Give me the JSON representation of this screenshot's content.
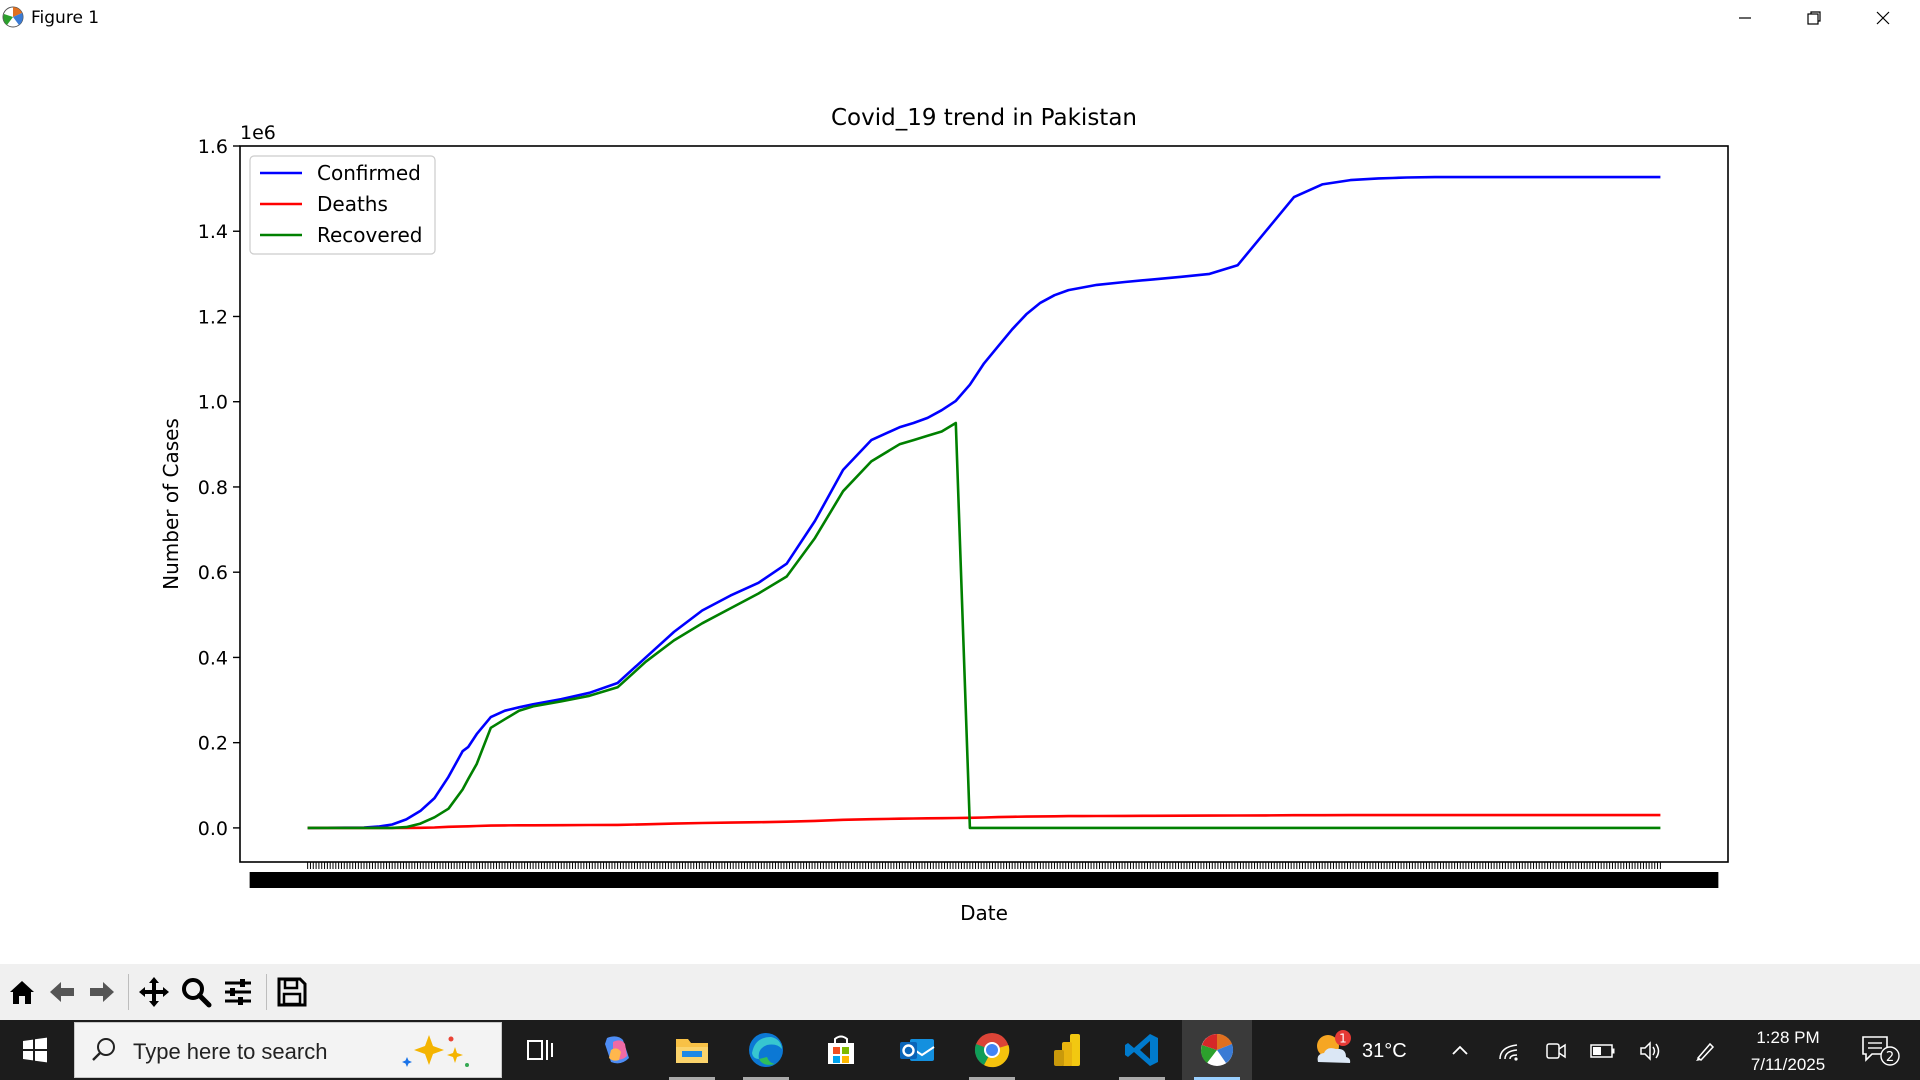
{
  "window": {
    "title": "Figure 1"
  },
  "chart_data": {
    "type": "line",
    "title": "Covid_19 trend in Pakistan",
    "xlabel": "Date",
    "ylabel": "Number of Cases",
    "y_offset_label": "1e6",
    "ylim": [
      -80000,
      1600000
    ],
    "yticks": [
      0,
      200000,
      400000,
      600000,
      800000,
      1000000,
      1200000,
      1400000,
      1600000
    ],
    "ytick_labels": [
      "0.0",
      "0.2",
      "0.4",
      "0.6",
      "0.8",
      "1.0",
      "1.2",
      "1.4",
      "1.6"
    ],
    "x_tick_labels_note": "dense overlapping date tick labels (unreadable)",
    "legend": "top-left",
    "x": [
      0,
      20,
      25,
      30,
      35,
      40,
      45,
      50,
      55,
      57,
      60,
      65,
      70,
      75,
      80,
      90,
      100,
      110,
      120,
      130,
      140,
      150,
      160,
      170,
      180,
      190,
      200,
      210,
      215,
      220,
      225,
      230,
      235,
      240,
      245,
      250,
      255,
      260,
      265,
      270,
      275,
      280,
      290,
      300,
      310,
      320,
      330,
      340,
      350,
      360,
      370,
      380,
      385,
      390,
      400,
      410,
      420,
      430,
      440,
      445,
      448,
      450,
      460,
      470,
      480
    ],
    "series": [
      {
        "name": "Confirmed",
        "color": "#0000ff",
        "values": [
          0,
          1000,
          3000,
          8000,
          20000,
          40000,
          70000,
          120000,
          180000,
          190000,
          220000,
          260000,
          275000,
          283000,
          290000,
          302000,
          317000,
          340000,
          400000,
          460000,
          510000,
          545000,
          575000,
          620000,
          720000,
          840000,
          910000,
          940000,
          950000,
          962000,
          980000,
          1002000,
          1040000,
          1090000,
          1130000,
          1170000,
          1205000,
          1232000,
          1250000,
          1262000,
          1268000,
          1274000,
          1281000,
          1287000,
          1293000,
          1300000,
          1320000,
          1400000,
          1480000,
          1510000,
          1520000,
          1524000,
          1525000,
          1526000,
          1527000,
          1527000,
          1527000,
          1527000,
          1527000,
          1527000,
          1527000,
          1527000,
          1527000,
          1527000,
          1527000
        ]
      },
      {
        "name": "Deaths",
        "color": "#ff0000",
        "values": [
          0,
          0,
          0,
          0,
          100,
          300,
          1000,
          2500,
          3500,
          3700,
          4500,
          5500,
          5800,
          6000,
          6100,
          6400,
          6700,
          7000,
          8500,
          10000,
          11500,
          12500,
          13500,
          14500,
          16500,
          19000,
          20500,
          21500,
          22000,
          22500,
          22800,
          23200,
          23800,
          24500,
          25300,
          26000,
          26600,
          27000,
          27300,
          27600,
          27800,
          28000,
          28200,
          28500,
          28700,
          28900,
          29100,
          29400,
          29700,
          29900,
          30000,
          30100,
          30100,
          30100,
          30100,
          30100,
          30100,
          30100,
          30100,
          30100,
          30100,
          30100,
          30100,
          30100,
          30100
        ]
      },
      {
        "name": "Recovered",
        "color": "#008000",
        "values": [
          0,
          0,
          0,
          0,
          2000,
          10000,
          25000,
          45000,
          90000,
          115000,
          150000,
          235000,
          255000,
          275000,
          285000,
          297000,
          310000,
          330000,
          390000,
          440000,
          480000,
          515000,
          550000,
          590000,
          680000,
          790000,
          860000,
          900000,
          910000,
          920000,
          930000,
          950000,
          0,
          0,
          0,
          0,
          0,
          0,
          0,
          0,
          0,
          0,
          0,
          0,
          0,
          0,
          0,
          0,
          0,
          0,
          0,
          0,
          0,
          0,
          0,
          0,
          0,
          0,
          0,
          0,
          0,
          0,
          0,
          0,
          0
        ]
      }
    ]
  },
  "toolbar": {
    "buttons": [
      "home-icon",
      "back-arrow-icon",
      "forward-arrow-icon",
      "pan-icon",
      "zoom-icon",
      "configure-subplots-icon",
      "save-icon"
    ]
  },
  "taskbar": {
    "search_placeholder": "Type here to search",
    "weather_temp": "31°C",
    "weather_badge": "1",
    "time": "1:28 PM",
    "date": "7/11/2025",
    "notification_count": "2",
    "apps": [
      "task-view",
      "copilot",
      "file-explorer",
      "edge",
      "microsoft-store",
      "outlook",
      "chrome",
      "power-bi",
      "vscode",
      "python-figure"
    ]
  }
}
